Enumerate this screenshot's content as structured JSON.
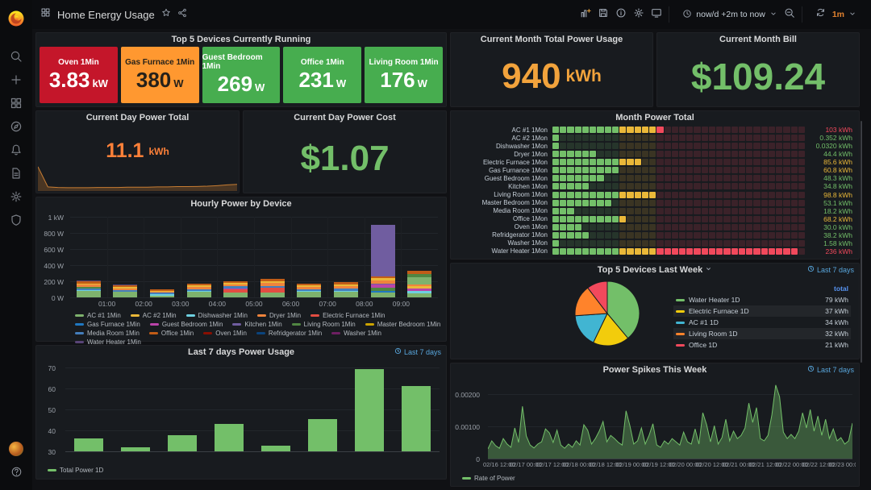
{
  "header": {
    "title": "Home Energy Usage",
    "time_range": "now/d +2m to now",
    "refresh": "1m"
  },
  "sidebar": {
    "icons": [
      "search",
      "plus",
      "apps",
      "compass",
      "bell",
      "document",
      "gear",
      "shield"
    ],
    "bottom_icons": [
      "avatar",
      "question"
    ]
  },
  "header_action_icons": [
    "add-panel",
    "save",
    "info",
    "gear",
    "monitor"
  ],
  "colors": {
    "accent_orange": "#F2A33C",
    "accent_green": "#73BF69",
    "link_blue": "#58a6dc",
    "refresh_orange": "#e0812f"
  },
  "panels": {
    "top5_running": {
      "title": "Top 5 Devices Currently Running",
      "tiles": [
        {
          "label": "Oven 1Min",
          "value": "3.83",
          "unit": "kW",
          "bg": "#C4162A",
          "fg": "#ffffff"
        },
        {
          "label": "Gas Furnace 1Min",
          "value": "380",
          "unit": "W",
          "bg": "#FF9830",
          "fg": "#26211a"
        },
        {
          "label": "Guest Bedroom 1Min",
          "value": "269",
          "unit": "W",
          "bg": "#47AD4F",
          "fg": "#ffffff"
        },
        {
          "label": "Office 1Min",
          "value": "231",
          "unit": "W",
          "bg": "#47AD4F",
          "fg": "#ffffff"
        },
        {
          "label": "Living Room 1Min",
          "value": "176",
          "unit": "W",
          "bg": "#47AD4F",
          "fg": "#ffffff"
        }
      ]
    },
    "month_total": {
      "title": "Current Month Total Power Usage",
      "value": "940",
      "unit": "kWh",
      "color": "#F2A33C"
    },
    "month_bill": {
      "title": "Current Month Bill",
      "value": "$109.24",
      "color": "#73BF69"
    },
    "day_total": {
      "title": "Current Day Power Total",
      "value": "11.1",
      "unit": "kWh",
      "color": "#FF8139"
    },
    "day_cost": {
      "title": "Current Day Power Cost",
      "value": "$1.07",
      "color": "#73BF69"
    },
    "month_power": {
      "title": "Month Power Total"
    },
    "hourly": {
      "title": "Hourly Power by Device"
    },
    "top5_week": {
      "title": "Top 5 Devices Last Week",
      "time_label": "Last 7 days"
    },
    "last7": {
      "title": "Last 7 days Power Usage",
      "time_label": "Last 7 days"
    },
    "spikes": {
      "title": "Power Spikes This Week",
      "time_label": "Last 7 days"
    }
  },
  "chart_data": [
    {
      "id": "month_power",
      "type": "bar",
      "title": "Month Power Total",
      "orientation": "horizontal-lcd-gauge",
      "unit": "kWh",
      "axis_max": 240,
      "thresholds": [
        {
          "up_to": 60,
          "color": "#73BF69"
        },
        {
          "up_to": 100,
          "color": "#EAB839"
        },
        {
          "up_to": 100000,
          "color": "#F2495C"
        }
      ],
      "categories": [
        "AC #1 1Mon",
        "AC #2 1Mon",
        "Dishwasher 1Mon",
        "Dryer 1Mon",
        "Electric Furnace 1Mon",
        "Gas Furnance 1Mon",
        "Guest Bedroom 1Mon",
        "Kitchen 1Mon",
        "Living Room 1Mon",
        "Master Bedroom 1Mon",
        "Media Room 1Mon",
        "Office 1Mon",
        "Oven 1Mon",
        "Refridgerator 1Mon",
        "Washer 1Mon",
        "Water Heater 1Mon"
      ],
      "values": [
        103,
        0.352,
        0.032,
        44.4,
        85.6,
        60.8,
        48.3,
        34.8,
        98.8,
        53.1,
        18.2,
        68.2,
        30.0,
        38.2,
        1.58,
        236
      ],
      "value_labels": [
        "103 kWh",
        "0.352 kWh",
        "0.0320 kWh",
        "44.4 kWh",
        "85.6 kWh",
        "60.8 kWh",
        "48.3 kWh",
        "34.8 kWh",
        "98.8 kWh",
        "53.1 kWh",
        "18.2 kWh",
        "68.2 kWh",
        "30.0 kWh",
        "38.2 kWh",
        "1.58 kWh",
        "236 kWh"
      ]
    },
    {
      "id": "hourly",
      "type": "bar",
      "stacked": true,
      "title": "Hourly Power by Device",
      "ylim": [
        0,
        1000
      ],
      "y_tick_labels": [
        "1 kW",
        "800 W",
        "600 W",
        "400 W",
        "200 W",
        "0 W"
      ],
      "x_tick_labels": [
        "01:00",
        "02:00",
        "03:00",
        "04:00",
        "05:00",
        "06:00",
        "07:00",
        "08:00",
        "09:00"
      ],
      "bar_totals_w": [
        215,
        165,
        100,
        170,
        195,
        230,
        170,
        190,
        900,
        330
      ],
      "bar_segments": [
        [
          [
            "#7EB26D",
            78
          ],
          [
            "#6ED0E0",
            10
          ],
          [
            "#447EBC",
            26
          ],
          [
            "#508642",
            18
          ],
          [
            "#EF843C",
            24
          ],
          [
            "#EAB839",
            18
          ],
          [
            "#C15C17",
            26
          ],
          [
            "#584477",
            15
          ]
        ],
        [
          [
            "#7EB26D",
            66
          ],
          [
            "#447EBC",
            22
          ],
          [
            "#EF843C",
            22
          ],
          [
            "#EAB839",
            16
          ],
          [
            "#C15C17",
            24
          ],
          [
            "#584477",
            15
          ]
        ],
        [
          [
            "#7EB26D",
            22
          ],
          [
            "#6ED0E0",
            14
          ],
          [
            "#447EBC",
            20
          ],
          [
            "#EF843C",
            16
          ],
          [
            "#EAB839",
            12
          ],
          [
            "#C15C17",
            16
          ]
        ],
        [
          [
            "#7EB26D",
            68
          ],
          [
            "#6ED0E0",
            10
          ],
          [
            "#447EBC",
            24
          ],
          [
            "#EF843C",
            26
          ],
          [
            "#EAB839",
            18
          ],
          [
            "#C15C17",
            24
          ]
        ],
        [
          [
            "#7EB26D",
            62
          ],
          [
            "#E24D42",
            38
          ],
          [
            "#BA43A9",
            14
          ],
          [
            "#447EBC",
            22
          ],
          [
            "#EF843C",
            24
          ],
          [
            "#EAB839",
            18
          ],
          [
            "#C15C17",
            17
          ]
        ],
        [
          [
            "#7EB26D",
            58
          ],
          [
            "#E24D42",
            58
          ],
          [
            "#447EBC",
            28
          ],
          [
            "#EF843C",
            32
          ],
          [
            "#EAB839",
            26
          ],
          [
            "#C15C17",
            28
          ]
        ],
        [
          [
            "#7EB26D",
            68
          ],
          [
            "#6ED0E0",
            10
          ],
          [
            "#447EBC",
            24
          ],
          [
            "#EF843C",
            26
          ],
          [
            "#EAB839",
            20
          ],
          [
            "#C15C17",
            22
          ]
        ],
        [
          [
            "#7EB26D",
            72
          ],
          [
            "#6ED0E0",
            10
          ],
          [
            "#447EBC",
            26
          ],
          [
            "#EF843C",
            30
          ],
          [
            "#EAB839",
            26
          ],
          [
            "#C15C17",
            26
          ]
        ],
        [
          [
            "#7EB26D",
            62
          ],
          [
            "#1F78C1",
            14
          ],
          [
            "#508642",
            40
          ],
          [
            "#BA43A9",
            40
          ],
          [
            "#705DA0",
            16
          ],
          [
            "#EF843C",
            40
          ],
          [
            "#EAB839",
            32
          ],
          [
            "#C15C17",
            16
          ],
          [
            "#705DA0",
            640
          ]
        ],
        [
          [
            "#7EB26D",
            48
          ],
          [
            "#6ED0E0",
            28
          ],
          [
            "#BA43A9",
            34
          ],
          [
            "#EAB839",
            30
          ],
          [
            "#EF843C",
            22
          ],
          [
            "#7EB26D",
            88
          ],
          [
            "#508642",
            44
          ],
          [
            "#C15C17",
            36
          ]
        ]
      ],
      "series_legend": [
        {
          "label": "AC #1 1Min",
          "color": "#7EB26D"
        },
        {
          "label": "AC #2 1Min",
          "color": "#EAB839"
        },
        {
          "label": "Dishwasher 1Min",
          "color": "#6ED0E0"
        },
        {
          "label": "Dryer 1Min",
          "color": "#EF843C"
        },
        {
          "label": "Electric Furnace 1Min",
          "color": "#E24D42"
        },
        {
          "label": "Gas Furnace 1Min",
          "color": "#1F78C1"
        },
        {
          "label": "Guest Bedroom 1Min",
          "color": "#BA43A9"
        },
        {
          "label": "Kitchen 1Min",
          "color": "#705DA0"
        },
        {
          "label": "Living Room 1Min",
          "color": "#508642"
        },
        {
          "label": "Master Bedroom 1Min",
          "color": "#CCA300"
        },
        {
          "label": "Media Room 1Min",
          "color": "#447EBC"
        },
        {
          "label": "Office 1Min",
          "color": "#C15C17"
        },
        {
          "label": "Oven 1Min",
          "color": "#890F02"
        },
        {
          "label": "Refridgerator 1Min",
          "color": "#0A437C"
        },
        {
          "label": "Washer 1Min",
          "color": "#6D1F62"
        },
        {
          "label": "Water Heater 1Min",
          "color": "#584477"
        }
      ]
    },
    {
      "id": "top5_week",
      "type": "pie",
      "title": "Top 5 Devices Last Week",
      "legend_value_header": "total",
      "slices": [
        {
          "label": "Water Heater 1D",
          "value": 79,
          "display": "79 kWh",
          "color": "#73BF69"
        },
        {
          "label": "Electric Furnace 1D",
          "value": 37,
          "display": "37 kWh",
          "color": "#F2CC0C"
        },
        {
          "label": "AC #1 1D",
          "value": 34,
          "display": "34 kWh",
          "color": "#41B5D2"
        },
        {
          "label": "Living Room 1D",
          "value": 32,
          "display": "32 kWh",
          "color": "#FF832B"
        },
        {
          "label": "Office 1D",
          "value": 21,
          "display": "21 kWh",
          "color": "#F2495C"
        }
      ]
    },
    {
      "id": "last7",
      "type": "bar",
      "title": "Last 7 days Power Usage",
      "ylim": [
        30,
        71
      ],
      "y_ticks": [
        70,
        60,
        50,
        40,
        30
      ],
      "values": [
        36,
        32,
        37.5,
        43,
        32.5,
        45.5,
        69,
        61
      ],
      "series": "Total Power 1D",
      "color": "#73BF69"
    },
    {
      "id": "spikes",
      "type": "area",
      "title": "Power Spikes This Week",
      "ylim": [
        0,
        0.0024
      ],
      "y_tick_labels": [
        "0.00200",
        "0.00100",
        "0"
      ],
      "x_tick_labels": [
        "02/16 12:00",
        "02/17 00:00",
        "02/17 12:00",
        "02/18 00:00",
        "02/18 12:00",
        "02/19 00:00",
        "02/19 12:00",
        "02/20 00:00",
        "02/20 12:00",
        "02/21 00:00",
        "02/21 12:00",
        "02/22 00:00",
        "02/22 12:00",
        "02/23 00:00"
      ],
      "series": "Rate of Power",
      "color": "#73BF69",
      "values_milli": [
        0.3,
        0.55,
        0.4,
        0.32,
        0.62,
        0.45,
        0.35,
        0.95,
        0.5,
        1.62,
        0.7,
        0.42,
        0.33,
        0.45,
        0.52,
        0.92,
        0.8,
        0.5,
        0.88,
        0.42,
        0.32,
        0.45,
        0.35,
        0.55,
        0.42,
        1.05,
        0.88,
        0.45,
        0.62,
        0.85,
        1.15,
        0.52,
        0.72,
        0.62,
        0.5,
        0.42,
        1.48,
        1.02,
        0.45,
        0.55,
        0.95,
        0.45,
        0.72,
        1.08,
        0.42,
        0.35,
        0.55,
        0.45,
        0.62,
        0.52,
        0.42,
        0.82,
        0.52,
        0.45,
        0.92,
        0.45,
        1.42,
        1.05,
        0.52,
        1.02,
        0.45,
        0.65,
        1.22,
        0.55,
        0.85,
        0.62,
        0.72,
        0.95,
        1.72,
        1.12,
        1.58,
        0.62,
        0.55,
        0.72,
        1.35,
        2.28,
        1.92,
        0.82,
        0.62,
        0.75,
        0.62,
        0.85,
        1.42,
        0.95,
        1.52,
        0.85,
        1.32,
        0.72,
        1.22,
        0.62,
        0.92,
        0.55,
        0.65,
        0.45,
        0.55,
        1.1
      ]
    },
    {
      "id": "day_total_spark",
      "type": "area",
      "color": "#FF9830",
      "values": [
        0.95,
        0.16,
        0.14,
        0.13,
        0.13,
        0.13,
        0.14,
        0.14,
        0.14,
        0.15,
        0.15,
        0.15,
        0.16,
        0.16,
        0.17,
        0.17,
        0.18,
        0.19,
        0.21,
        0.24,
        0.26
      ]
    }
  ]
}
